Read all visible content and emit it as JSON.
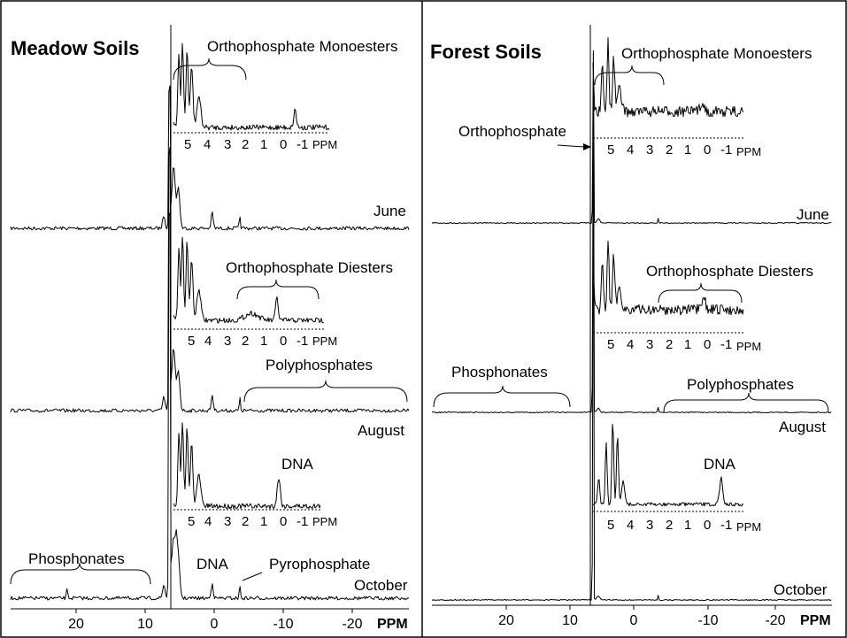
{
  "chart_data": [
    {
      "type": "line",
      "title": "Meadow Soils",
      "xlabel": "PPM",
      "x_ticks": [
        "20",
        "10",
        "0",
        "-10",
        "-20"
      ],
      "inset_ticks": [
        "5",
        "4",
        "3",
        "2",
        "1",
        "0",
        "-1"
      ],
      "inset_xlabel": "PPM",
      "series": [
        {
          "name": "June",
          "peaks_ppm": [
            6.2,
            5.6,
            5.3,
            4.8,
            4.3,
            0.0,
            -4.0
          ]
        },
        {
          "name": "August",
          "peaks_ppm": [
            6.2,
            5.6,
            5.3,
            4.8,
            4.3,
            0.0,
            -4.0
          ]
        },
        {
          "name": "October",
          "peaks_ppm": [
            6.2,
            5.6,
            5.3,
            4.8,
            4.3,
            0.0,
            -4.0,
            21.0
          ]
        }
      ],
      "annotations": [
        "Orthophosphate Monoesters",
        "Orthophosphate Diesters",
        "Polyphosphates",
        "DNA",
        "Phosphonates",
        "DNA",
        "Pyrophosphate"
      ]
    },
    {
      "type": "line",
      "title": "Forest Soils",
      "xlabel": "PPM",
      "x_ticks": [
        "20",
        "10",
        "0",
        "-10",
        "-20"
      ],
      "inset_ticks": [
        "5",
        "4",
        "3",
        "2",
        "1",
        "0",
        "-1"
      ],
      "inset_xlabel": "PPM",
      "series": [
        {
          "name": "June",
          "peaks_ppm": [
            6.2,
            5.4,
            4.8,
            0.0,
            -4.0
          ]
        },
        {
          "name": "August",
          "peaks_ppm": [
            6.2,
            5.4,
            4.8,
            0.0,
            -4.0
          ]
        },
        {
          "name": "October",
          "peaks_ppm": [
            6.2,
            5.4,
            4.8,
            0.0,
            -4.0
          ]
        }
      ],
      "annotations": [
        "Orthophosphate",
        "Orthophosphate Monoesters",
        "Orthophosphate Diesters",
        "Phosphonates",
        "Polyphosphates",
        "DNA"
      ]
    }
  ]
}
